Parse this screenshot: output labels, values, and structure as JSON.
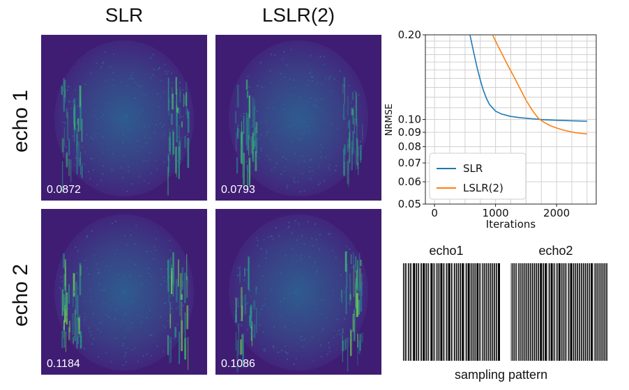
{
  "columns": [
    "SLR",
    "LSLR(2)"
  ],
  "rows": [
    "echo 1",
    "echo 2"
  ],
  "panels": [
    {
      "row": "echo 1",
      "col": "SLR",
      "value": "0.0872"
    },
    {
      "row": "echo 1",
      "col": "LSLR(2)",
      "value": "0.0793"
    },
    {
      "row": "echo 2",
      "col": "SLR",
      "value": "0.1184"
    },
    {
      "row": "echo 2",
      "col": "LSLR(2)",
      "value": "0.1086"
    }
  ],
  "chart_data": {
    "type": "line",
    "xlabel": "Iterations",
    "ylabel": "NRMSE",
    "yscale": "log",
    "xlim": [
      -150,
      2650
    ],
    "ylim": [
      0.05,
      0.2
    ],
    "xticks": [
      0,
      1000,
      2000
    ],
    "xtick_labels": [
      "0",
      "1000",
      "2000"
    ],
    "yticks": [
      0.05,
      0.06,
      0.07,
      0.08,
      0.09,
      0.1,
      0.2
    ],
    "ytick_labels": [
      "0.05",
      "0.06",
      "0.07",
      "0.08",
      "0.09",
      "0.10",
      "0.20"
    ],
    "grid": true,
    "legend": "lower-left",
    "series": [
      {
        "name": "SLR",
        "color": "#1f77b4",
        "x": [
          580,
          650,
          700,
          750,
          800,
          850,
          900,
          1000,
          1100,
          1250,
          1400,
          1600,
          1800,
          2000,
          2200,
          2500
        ],
        "y": [
          0.2,
          0.17,
          0.152,
          0.138,
          0.127,
          0.119,
          0.113,
          0.107,
          0.1045,
          0.1025,
          0.1015,
          0.1005,
          0.0998,
          0.0993,
          0.099,
          0.0985
        ]
      },
      {
        "name": "LSLR(2)",
        "color": "#ff7f0e",
        "x": [
          950,
          1000,
          1100,
          1200,
          1300,
          1400,
          1500,
          1600,
          1700,
          1800,
          1900,
          2000,
          2100,
          2200,
          2300,
          2400,
          2500
        ],
        "y": [
          0.2,
          0.19,
          0.172,
          0.156,
          0.142,
          0.129,
          0.117,
          0.108,
          0.101,
          0.0975,
          0.095,
          0.0932,
          0.0918,
          0.0907,
          0.0898,
          0.0892,
          0.0888
        ]
      }
    ]
  },
  "sampling": {
    "labels": [
      "echo1",
      "echo2"
    ],
    "caption": "sampling pattern",
    "echo1_lines": [
      0,
      2,
      4,
      5,
      7,
      9,
      10,
      13,
      15,
      17,
      18,
      20,
      23,
      25,
      27,
      28,
      31,
      33,
      34,
      36,
      38,
      41,
      43,
      44,
      46,
      49,
      51,
      52,
      54,
      56,
      58,
      60,
      63,
      64,
      66,
      69,
      71,
      73,
      75,
      78,
      80,
      81,
      83,
      85,
      87,
      89,
      91,
      93,
      95,
      97
    ],
    "echo2_lines": [
      0,
      1,
      3,
      5,
      7,
      8,
      10,
      12,
      14,
      16,
      18,
      20,
      22,
      24,
      26,
      28,
      30,
      33,
      35,
      38,
      39,
      41,
      44,
      46,
      47,
      49,
      52,
      54,
      56,
      58,
      59,
      61,
      64,
      66,
      68,
      70,
      72,
      74,
      76,
      78,
      80,
      82,
      85,
      86,
      88,
      90,
      92,
      94,
      96,
      98
    ]
  }
}
